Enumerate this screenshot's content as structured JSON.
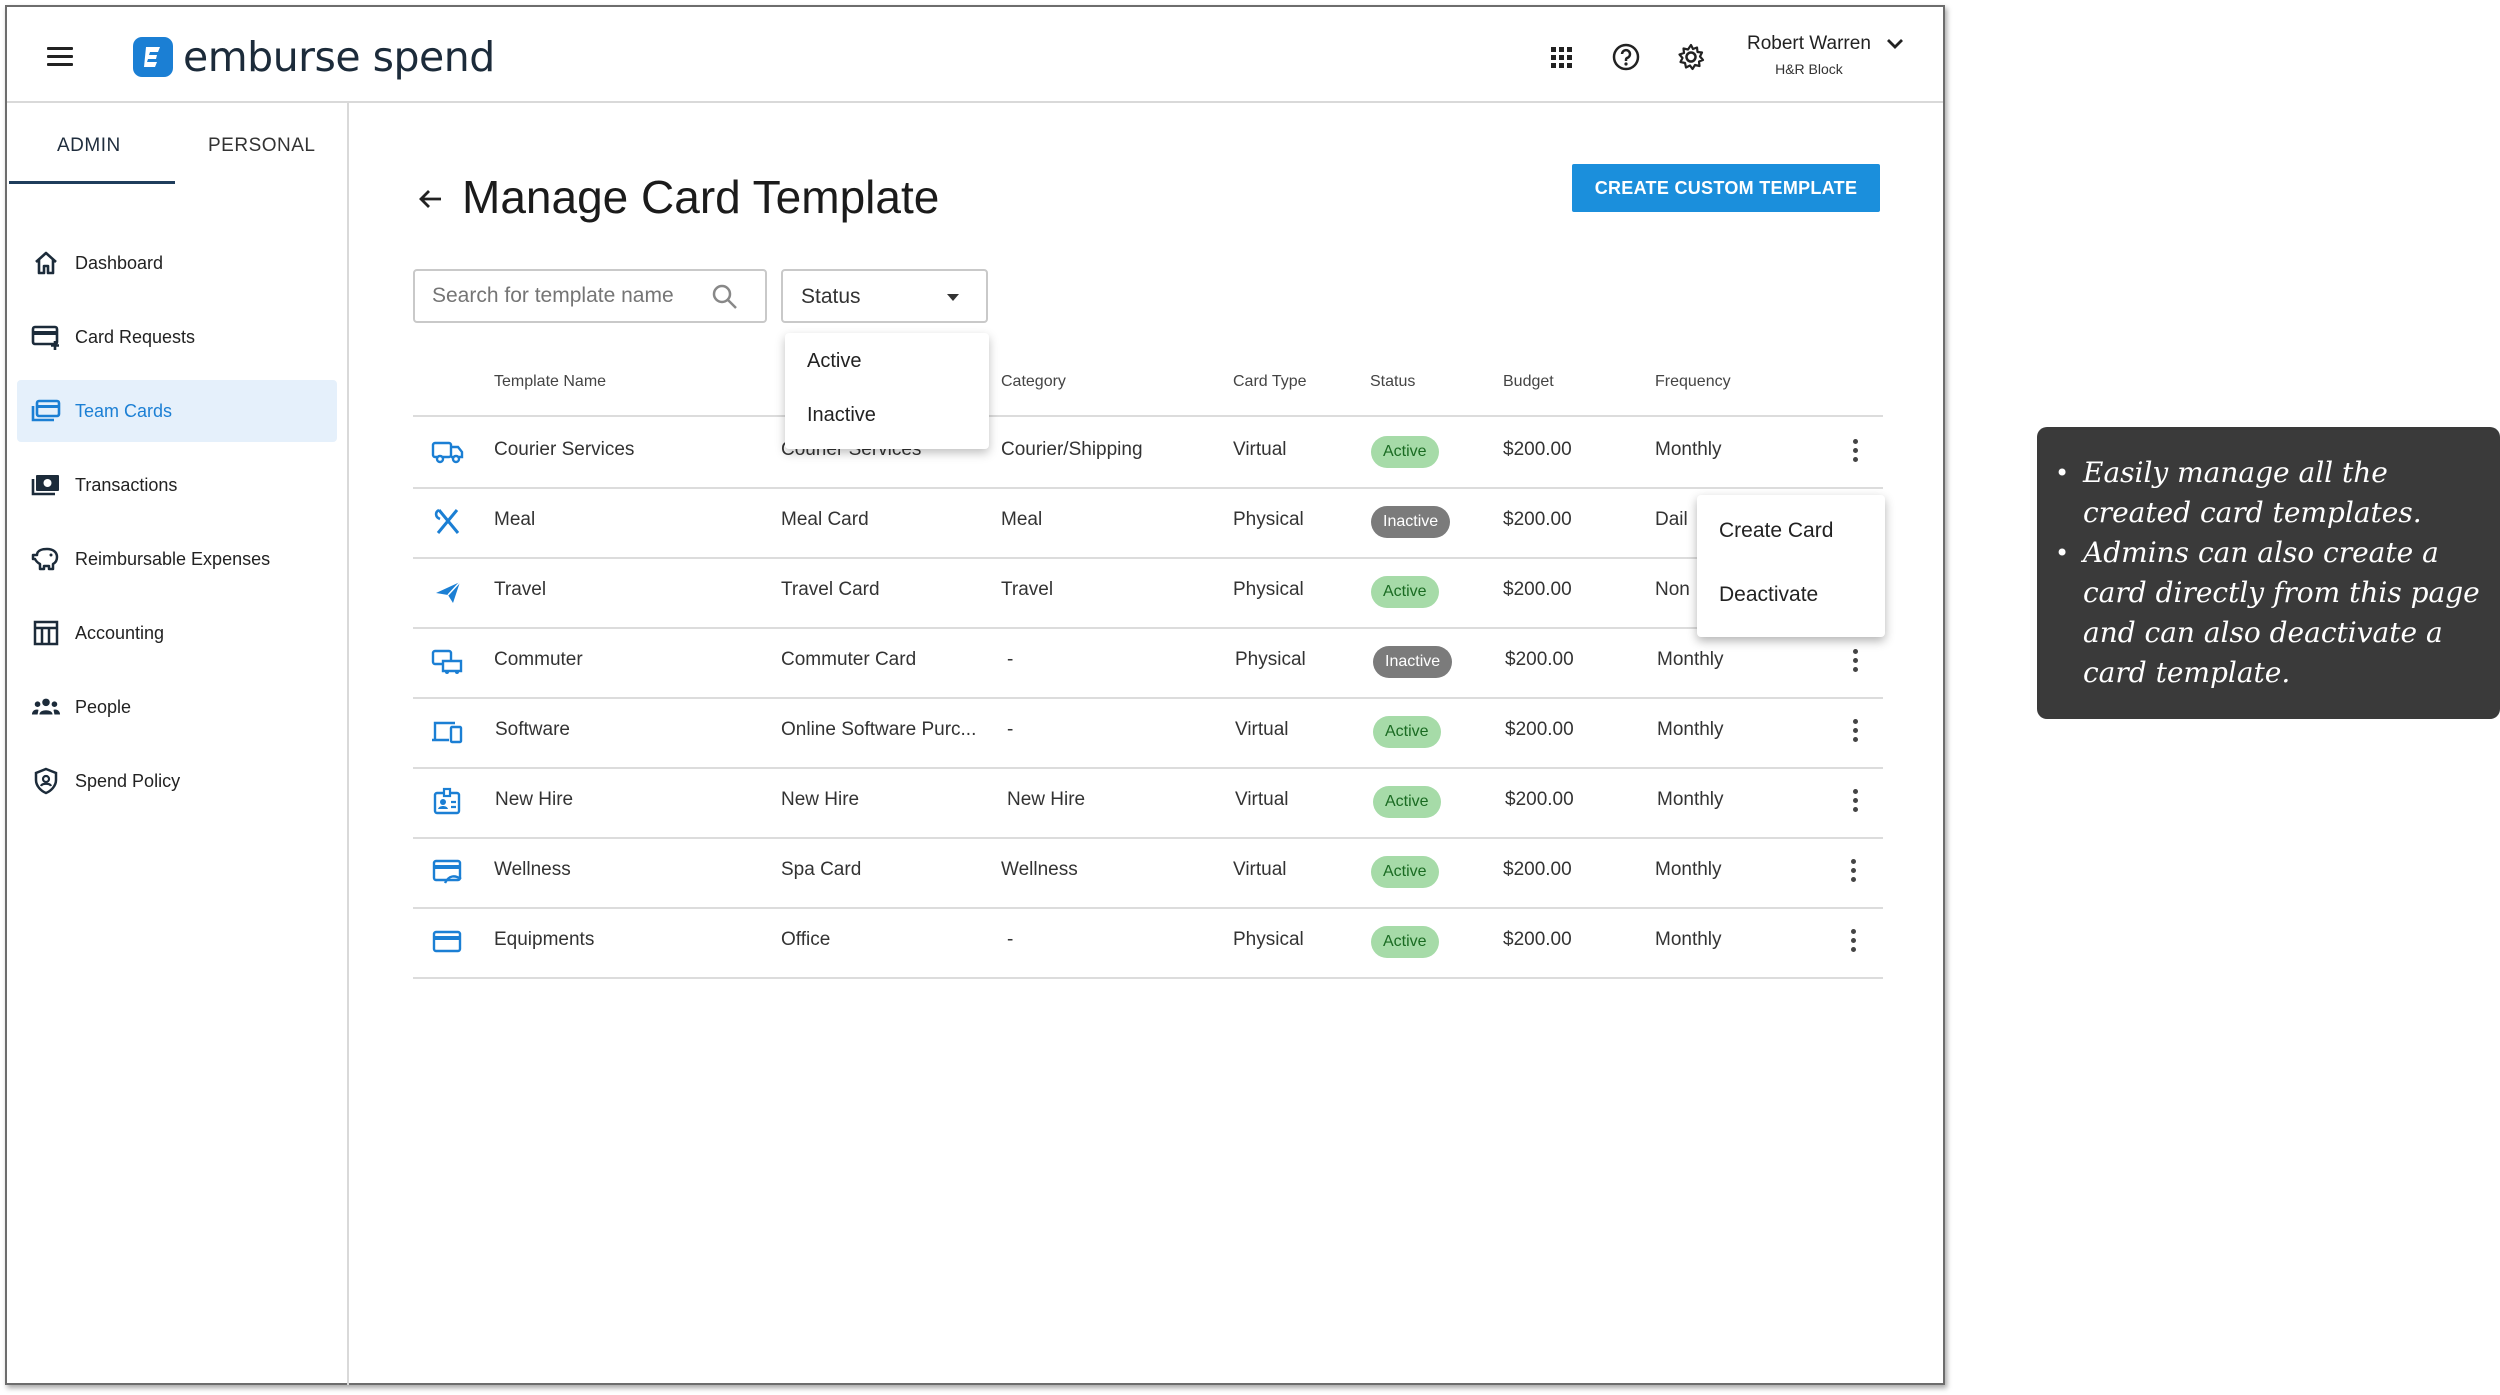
{
  "header": {
    "logo_text": "emburse spend",
    "user_name": "Robert Warren",
    "user_org": "H&R Block"
  },
  "sidebar": {
    "tabs": [
      {
        "label": "ADMIN"
      },
      {
        "label": "PERSONAL"
      }
    ],
    "items": [
      {
        "label": "Dashboard",
        "icon": "home-icon"
      },
      {
        "label": "Card Requests",
        "icon": "card-add-icon"
      },
      {
        "label": "Team Cards",
        "icon": "cards-icon"
      },
      {
        "label": "Transactions",
        "icon": "money-icon"
      },
      {
        "label": "Reimbursable Expenses",
        "icon": "piggy-bank-icon"
      },
      {
        "label": "Accounting",
        "icon": "table-icon"
      },
      {
        "label": "People",
        "icon": "people-icon"
      },
      {
        "label": "Spend Policy",
        "icon": "shield-icon"
      }
    ]
  },
  "main": {
    "title": "Manage Card Template",
    "create_button": "CREATE CUSTOM TEMPLATE",
    "search_placeholder": "Search for template name",
    "status_filter": "Status",
    "status_options": [
      "Active",
      "Inactive"
    ],
    "columns": [
      "Template Name",
      "Category",
      "Card Type",
      "Status",
      "Budget",
      "Frequency"
    ],
    "rows": [
      {
        "icon": "truck-icon",
        "template": "Courier Services",
        "card_name": "Courier Services",
        "category": "Courier/Shipping",
        "card_type": "Virtual",
        "status": "Active",
        "budget": "$200.00",
        "frequency": "Monthly"
      },
      {
        "icon": "utensils-icon",
        "template": "Meal",
        "card_name": "Meal Card",
        "category": "Meal",
        "card_type": "Physical",
        "status": "Inactive",
        "budget": "$200.00",
        "frequency": "Dail"
      },
      {
        "icon": "airplane-icon",
        "template": "Travel",
        "card_name": "Travel Card",
        "category": "Travel",
        "card_type": "Physical",
        "status": "Active",
        "budget": "$200.00",
        "frequency": "Non"
      },
      {
        "icon": "commute-icon",
        "template": "Commuter",
        "card_name": "Commuter Card",
        "category": "-",
        "card_type": "Physical",
        "status": "Inactive",
        "budget": "$200.00",
        "frequency": "Monthly"
      },
      {
        "icon": "devices-icon",
        "template": "Software",
        "card_name": "Online Software Purc...",
        "category": "-",
        "card_type": "Virtual",
        "status": "Active",
        "budget": "$200.00",
        "frequency": "Monthly"
      },
      {
        "icon": "badge-icon",
        "template": "New Hire",
        "card_name": "New Hire",
        "category": "New Hire",
        "card_type": "Virtual",
        "status": "Active",
        "budget": "$200.00",
        "frequency": "Monthly"
      },
      {
        "icon": "wellness-card-icon",
        "template": "Wellness",
        "card_name": "Spa Card",
        "category": "Wellness",
        "card_type": "Virtual",
        "status": "Active",
        "budget": "$200.00",
        "frequency": "Monthly"
      },
      {
        "icon": "credit-card-icon",
        "template": "Equipments",
        "card_name": "Office",
        "category": "-",
        "card_type": "Physical",
        "status": "Active",
        "budget": "$200.00",
        "frequency": "Monthly"
      }
    ],
    "row_menu": [
      "Create Card",
      "Deactivate"
    ]
  },
  "annotation": {
    "bullets": [
      "Easily manage all the created card templates.",
      "Admins can also create a card directly from this page and can also deactivate a card template."
    ]
  },
  "colors": {
    "accent": "#1b8fdc",
    "active_badge": "#a6dba8",
    "inactive_badge": "#7b7b7b",
    "note_bg": "#3a3a3a"
  }
}
